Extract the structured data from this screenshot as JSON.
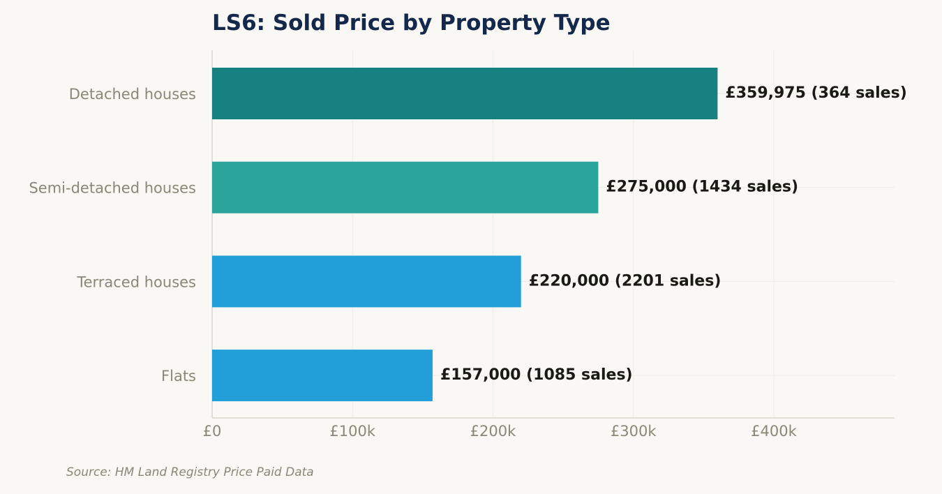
{
  "chart_data": {
    "type": "bar",
    "orientation": "horizontal",
    "title": "LS6: Sold Price by Property Type",
    "categories": [
      "Detached houses",
      "Semi-detached houses",
      "Terraced houses",
      "Flats"
    ],
    "values": [
      359975,
      275000,
      220000,
      157000
    ],
    "sales": [
      364,
      1434,
      2201,
      1085
    ],
    "data_labels": [
      "£359,975  (364 sales)",
      "£275,000  (1434 sales)",
      "£220,000  (2201 sales)",
      "£157,000  (1085 sales)"
    ],
    "bar_colors": [
      "#178181",
      "#2ba59c",
      "#229ed9",
      "#229ed9"
    ],
    "xlim": [
      0,
      486000
    ],
    "xticks": [
      0,
      100000,
      200000,
      300000,
      400000
    ],
    "xtick_labels": [
      "£0",
      "£100k",
      "£200k",
      "£300k",
      "£400k"
    ],
    "xlabel": "",
    "ylabel": "",
    "grid": true,
    "legend": "none",
    "source": "Source: HM Land Registry Price Paid Data"
  },
  "colors": {
    "background": "#f9f8f4",
    "title": "#14284b",
    "axis_text": "#8a8778",
    "data_label": "#1a1a14",
    "grid": "#ecebe4",
    "axis_line": "#d8d6cc"
  }
}
